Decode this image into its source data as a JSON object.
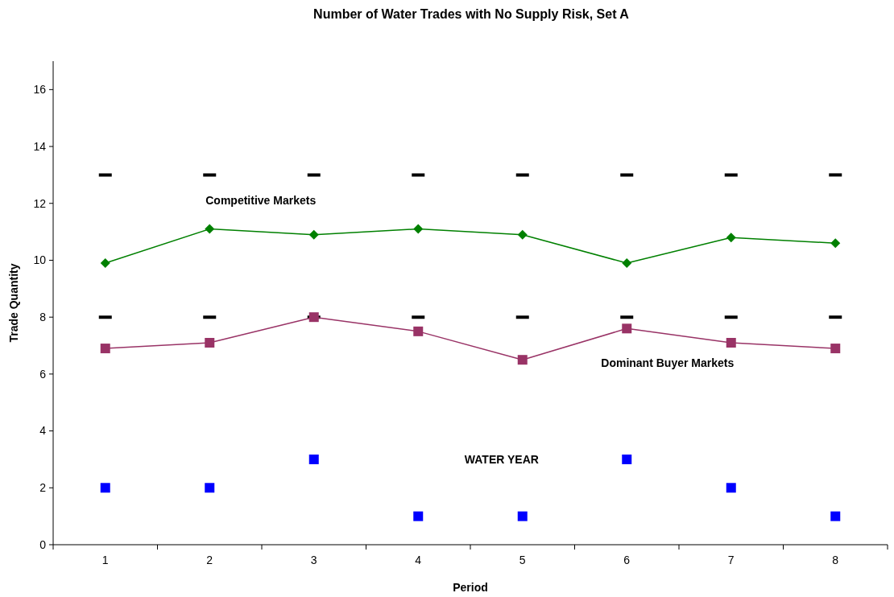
{
  "chart_data": {
    "type": "line",
    "title": "Number of Water Trades with No Supply Risk, Set A",
    "xlabel": "Period",
    "ylabel": "Trade Quantity",
    "categories": [
      "1",
      "2",
      "3",
      "4",
      "5",
      "6",
      "7",
      "8"
    ],
    "ylim": [
      0,
      17
    ],
    "yticks": [
      0,
      2,
      4,
      6,
      8,
      10,
      12,
      14,
      16
    ],
    "grid": false,
    "series": [
      {
        "type": "line",
        "color": "#008000",
        "marker": "diamond",
        "values": [
          9.9,
          11.1,
          10.9,
          11.1,
          10.9,
          9.9,
          10.8,
          10.6
        ]
      },
      {
        "type": "line",
        "color": "#993366",
        "marker": "square",
        "values": [
          6.9,
          7.1,
          8.0,
          7.5,
          6.5,
          7.6,
          7.1,
          6.9
        ]
      },
      {
        "type": "scatter",
        "color": "#0000ff",
        "marker": "square",
        "values": [
          2,
          2,
          3,
          1,
          1,
          3,
          2,
          1
        ]
      }
    ],
    "ref_lines": [
      {
        "axis": "y",
        "value": 13,
        "color": "#000000",
        "line_style": "dashed"
      },
      {
        "axis": "y",
        "value": 8,
        "color": "#000000",
        "line_style": "dashed"
      }
    ],
    "annotations": [
      "Competitive Markets",
      "Dominant Buyer Markets",
      "WATER YEAR"
    ]
  }
}
